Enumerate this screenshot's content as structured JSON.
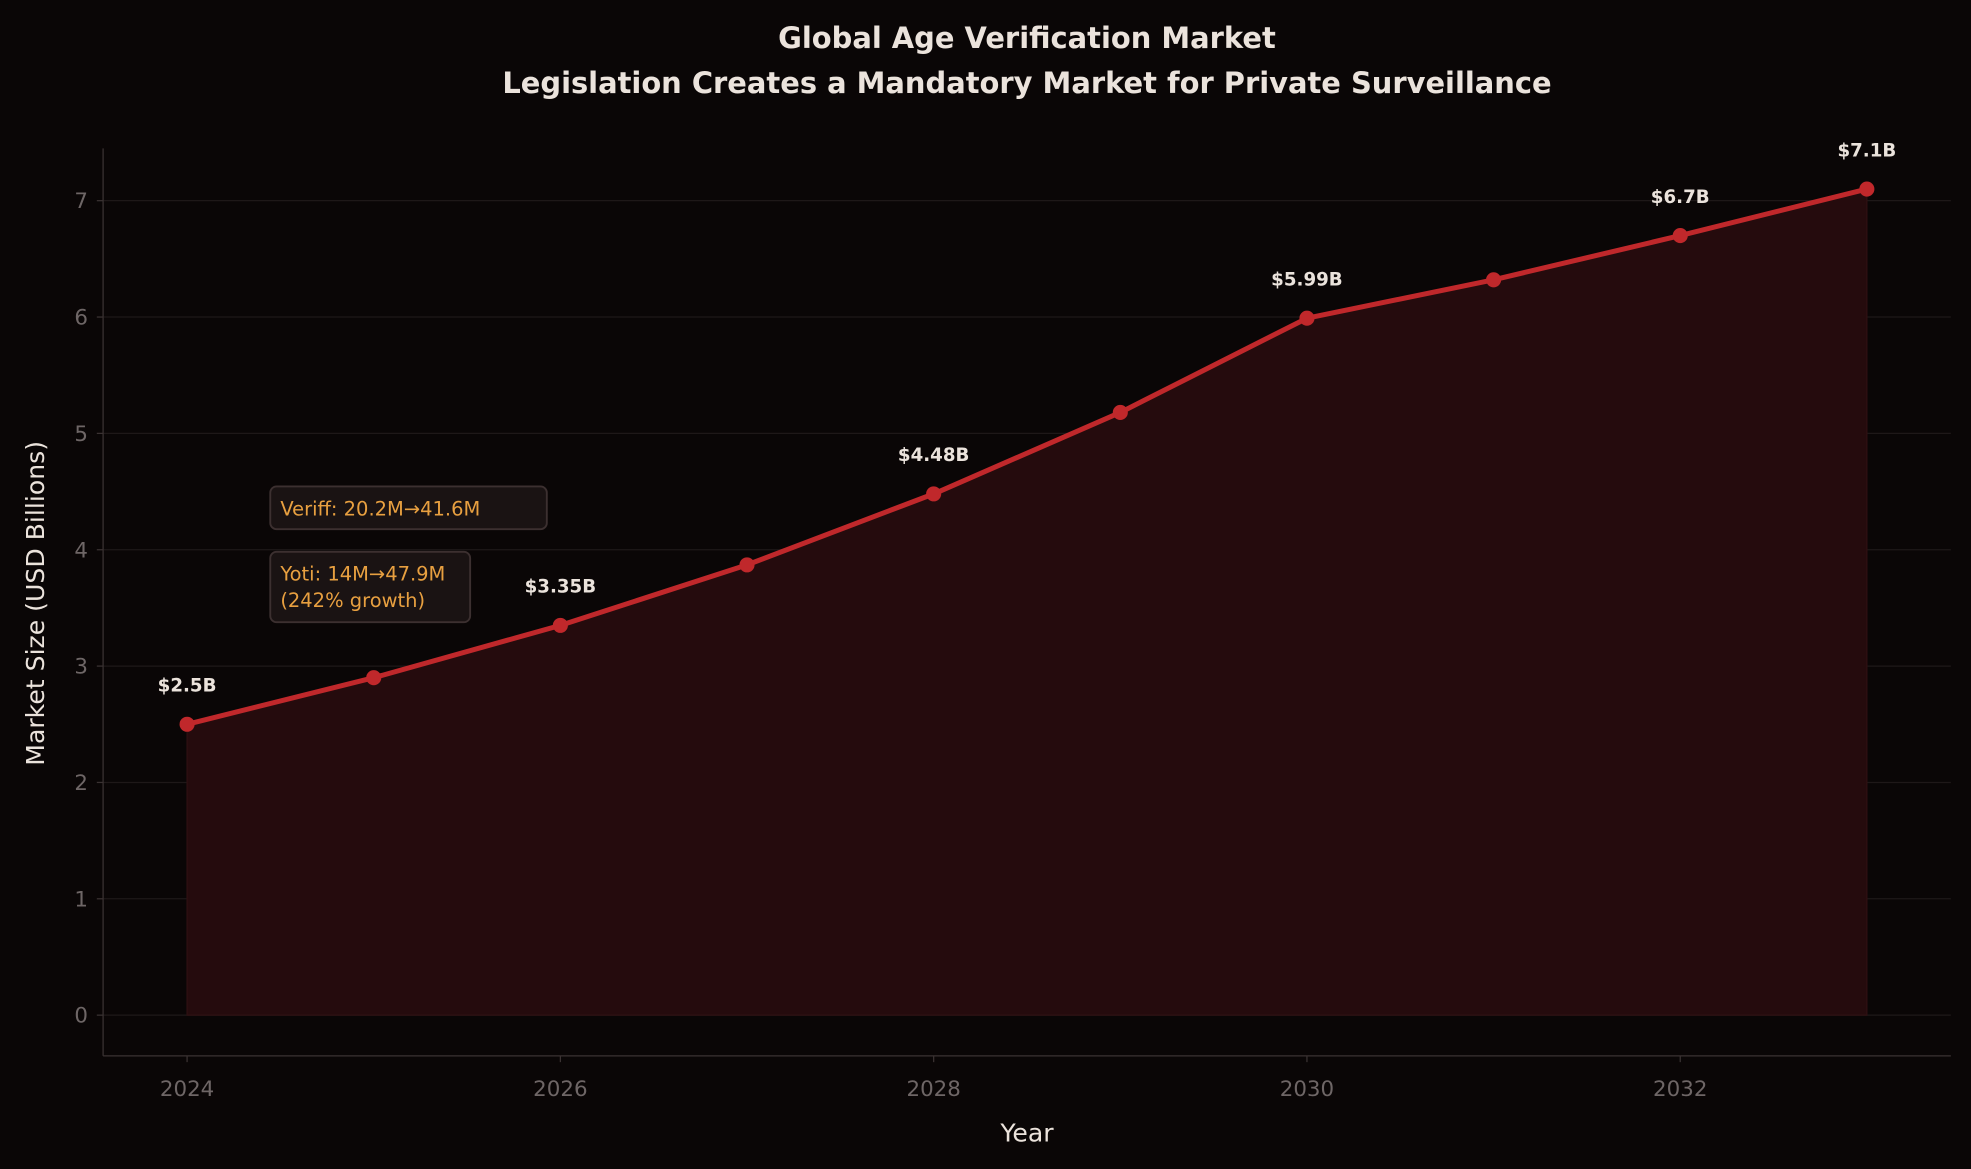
{
  "chart_data": {
    "type": "line",
    "title": "Global Age Verification Market",
    "subtitle": "Legislation Creates a Mandatory Market for Private Surveillance",
    "xlabel": "Year",
    "ylabel": "Market Size (USD Billions)",
    "x": [
      2024,
      2025,
      2026,
      2027,
      2028,
      2029,
      2030,
      2031,
      2032,
      2033
    ],
    "values": [
      2.5,
      2.9,
      3.35,
      3.87,
      4.48,
      5.18,
      5.99,
      6.32,
      6.7,
      7.1
    ],
    "data_labels": [
      {
        "x": 2024,
        "y": 2.5,
        "text": "$2.5B"
      },
      {
        "x": 2026,
        "y": 3.35,
        "text": "$3.35B"
      },
      {
        "x": 2028,
        "y": 4.48,
        "text": "$4.48B"
      },
      {
        "x": 2030,
        "y": 5.99,
        "text": "$5.99B"
      },
      {
        "x": 2032,
        "y": 6.7,
        "text": "$6.7B"
      },
      {
        "x": 2033,
        "y": 7.1,
        "text": "$7.1B"
      }
    ],
    "xticks": [
      2024,
      2026,
      2028,
      2030,
      2032
    ],
    "yticks": [
      0,
      1,
      2,
      3,
      4,
      5,
      6,
      7
    ],
    "xlim": [
      2023.55,
      2033.45
    ],
    "ylim": [
      -0.35,
      7.45
    ],
    "grid": true,
    "annotations": [
      {
        "lines": [
          "Veriff: 20.2M→41.6M"
        ]
      },
      {
        "lines": [
          "Yoti: 14M→47.9M",
          "(242% growth)"
        ]
      }
    ],
    "colors": {
      "line": "#c0282b",
      "fill": "#250b0d",
      "annotation": "#e8a040",
      "background": "#0a0606"
    }
  }
}
